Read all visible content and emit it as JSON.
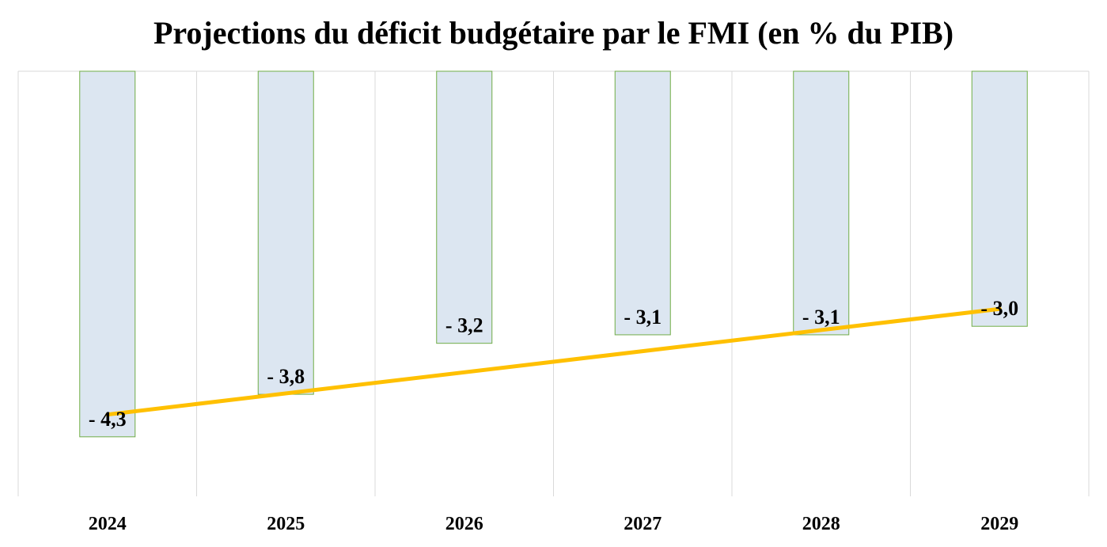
{
  "chart_data": {
    "type": "bar",
    "title": "Projections du déficit budgétaire par le FMI (en % du PIB)",
    "categories": [
      "2024",
      "2025",
      "2026",
      "2027",
      "2028",
      "2029"
    ],
    "values": [
      -4.3,
      -3.8,
      -3.2,
      -3.1,
      -3.1,
      -3.0
    ],
    "value_labels": [
      "- 4,3",
      "- 3,8",
      "- 3,2",
      "- 3,1",
      "- 3,1",
      "- 3,0"
    ],
    "ylim": [
      -5,
      0
    ],
    "xlabel": "",
    "ylabel": "",
    "grid": "vertical",
    "legend": "none",
    "trendline": "linear",
    "colors": {
      "bar_fill": "#dce6f1",
      "bar_stroke": "#70ad47",
      "trend": "#ffc000",
      "grid": "#d9d9d9",
      "axis": "#d9d9d9"
    }
  }
}
